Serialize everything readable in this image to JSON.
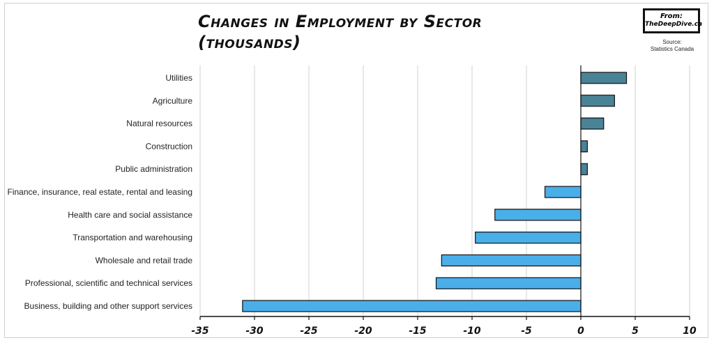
{
  "header": {
    "title_line1": "Changes in Employment by Sector",
    "title_line2": "(thousands)",
    "badge_from": "From:",
    "badge_site": "TheDeepDive.ca",
    "source_line1": "Source:",
    "source_line2": "Statistics Canada"
  },
  "chart_data": {
    "type": "bar",
    "orientation": "horizontal",
    "categories": [
      "Utilities",
      "Agriculture",
      "Natural resources",
      "Construction",
      "Public administration",
      "Finance, insurance, real estate, rental and leasing",
      "Health care and social assistance",
      "Transportation and warehousing",
      "Wholesale and retail trade",
      "Professional, scientific and technical services",
      "Business, building and other support services"
    ],
    "values": [
      4.2,
      3.1,
      2.1,
      0.6,
      0.6,
      -3.3,
      -7.9,
      -9.7,
      -12.8,
      -13.3,
      -31.1
    ],
    "xlim": [
      -35,
      10
    ],
    "xticks": [
      -35,
      -30,
      -25,
      -20,
      -15,
      -10,
      -5,
      0,
      5,
      10
    ],
    "tick_labels": [
      "-35",
      "-30",
      "-25",
      "-20",
      "-15",
      "-10",
      "-5",
      "0",
      "5",
      "10"
    ],
    "grid": true,
    "colors": {
      "positive": "#4a8296",
      "negative": "#4aaee8",
      "outline": "#111111",
      "grid": "#d0d0d0"
    }
  }
}
